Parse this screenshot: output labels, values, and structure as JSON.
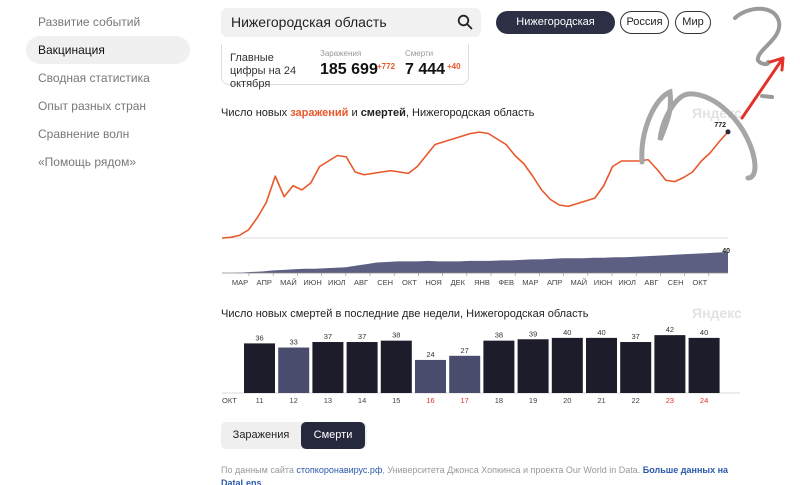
{
  "sidebar": {
    "items": [
      {
        "label": "Развитие событий",
        "active": false
      },
      {
        "label": "Вакцинация",
        "active": true
      },
      {
        "label": "Сводная статистика",
        "active": false
      },
      {
        "label": "Опыт разных стран",
        "active": false
      },
      {
        "label": "Сравнение волн",
        "active": false
      },
      {
        "label": "«Помощь рядом»",
        "active": false
      }
    ]
  },
  "search": {
    "value": "Нижегородская область"
  },
  "region_pills": [
    {
      "label": "Нижегородская область",
      "active": true
    },
    {
      "label": "Россия",
      "active": false
    },
    {
      "label": "Мир",
      "active": false
    }
  ],
  "summary": {
    "label": "Главные цифры на 24 октября",
    "cases_label": "Заражения",
    "cases_value": "185 699",
    "cases_delta": "+772",
    "deaths_label": "Смерти",
    "deaths_value": "7 444",
    "deaths_delta": "+40"
  },
  "chart1_title": {
    "prefix": "Число новых ",
    "infections": "заражений",
    "mid": " и ",
    "deaths": "смертей",
    "suffix": ", Нижегородская область"
  },
  "chart2_title": "Число новых смертей в последние две недели, Нижегородская область",
  "watermark": "Яндекс",
  "toggle": {
    "cases": "Заражения",
    "deaths": "Смерти",
    "active": "deaths"
  },
  "footer": {
    "prefix": "По данным сайта ",
    "link1": "стопкоронавирус.рф",
    "mid": ", Университета Джонса Хопкинса и проекта Our World in Data. ",
    "link2": "Больше данных на DataLens"
  },
  "colors": {
    "infections": "#e8582b",
    "deaths": "#26283d",
    "deaths_light": "#4a4c6e",
    "weekend": "#e03030"
  },
  "chart_data": [
    {
      "type": "line",
      "title": "Число новых заражений и смертей, Нижегородская область",
      "x_ticks": [
        "МАР",
        "АПР",
        "МАЙ",
        "ИЮН",
        "ИЮЛ",
        "АВГ",
        "СЕН",
        "ОКТ",
        "НОЯ",
        "ДЕК",
        "ЯНВ",
        "ФЕВ",
        "МАР",
        "АПР",
        "МАЙ",
        "ИЮН",
        "ИЮЛ",
        "АВГ",
        "СЕН",
        "ОКТ"
      ],
      "series": [
        {
          "name": "заражений",
          "last_value_label": "772",
          "values": [
            0,
            5,
            20,
            60,
            150,
            260,
            450,
            300,
            380,
            350,
            400,
            520,
            560,
            600,
            590,
            480,
            460,
            470,
            480,
            490,
            480,
            470,
            520,
            600,
            680,
            700,
            720,
            740,
            760,
            770,
            760,
            720,
            680,
            600,
            540,
            450,
            350,
            280,
            240,
            230,
            250,
            270,
            290,
            380,
            520,
            560,
            560,
            560,
            570,
            500,
            420,
            410,
            440,
            480,
            560,
            620,
            700,
            772
          ]
        },
        {
          "name": "смертей",
          "last_value_label": "40",
          "values": [
            0,
            0,
            1,
            2,
            3,
            5,
            6,
            7,
            8,
            8,
            9,
            10,
            11,
            14,
            17,
            20,
            21,
            22,
            22,
            22,
            23,
            22,
            22,
            22,
            23,
            23,
            23,
            24,
            24,
            25,
            26,
            26,
            27,
            28,
            28,
            28,
            29,
            29,
            30,
            30,
            31,
            32,
            33,
            34,
            35,
            36,
            37,
            38,
            39,
            40
          ]
        }
      ]
    },
    {
      "type": "bar",
      "title": "Число новых смертей в последние две недели, Нижегородская область",
      "month_label": "ОКТ",
      "categories": [
        "11",
        "12",
        "13",
        "14",
        "15",
        "16",
        "17",
        "18",
        "19",
        "20",
        "21",
        "22",
        "23",
        "24"
      ],
      "values": [
        36,
        33,
        37,
        37,
        38,
        24,
        27,
        38,
        39,
        40,
        40,
        37,
        42,
        40
      ],
      "weekend_categories": [
        "16",
        "17",
        "23",
        "24"
      ],
      "light_bars": [
        "12",
        "16",
        "17"
      ]
    }
  ]
}
